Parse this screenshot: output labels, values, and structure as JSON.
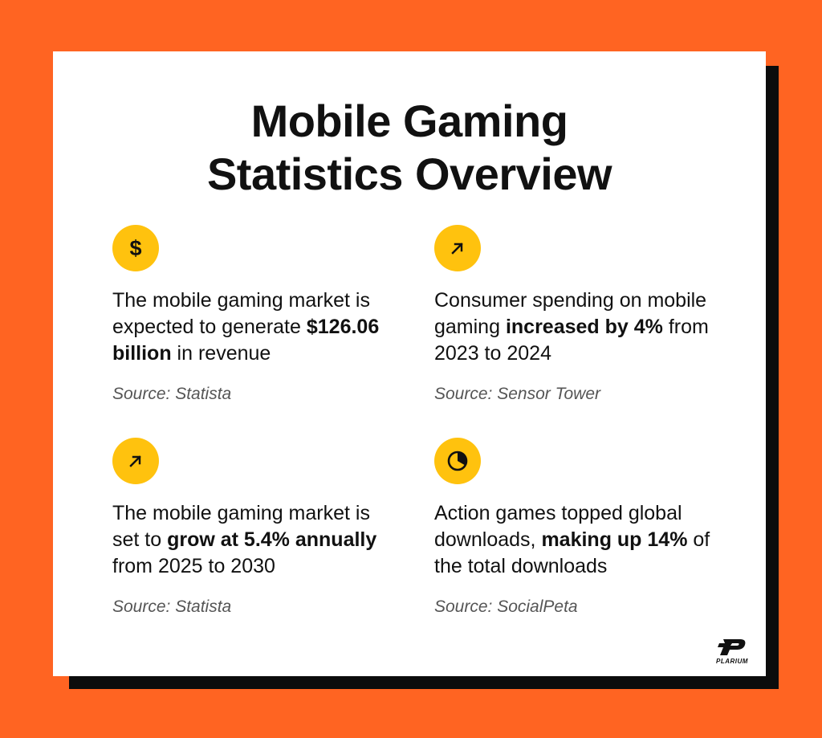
{
  "title": {
    "line1": "Mobile Gaming",
    "line2": "Statistics Overview"
  },
  "stats": [
    {
      "icon": "dollar-icon",
      "pre": "The mobile gaming market is expected to generate ",
      "bold": "$126.06 billion",
      "post": " in revenue",
      "source": "Source: Statista"
    },
    {
      "icon": "arrow-up-right-icon",
      "pre": "Consumer spending on mobile gaming ",
      "bold": "increased by 4%",
      "post": " from 2023 to 2024",
      "source": "Source: Sensor Tower"
    },
    {
      "icon": "arrow-up-right-icon",
      "pre": "The mobile gaming market is set to ",
      "bold": "grow at 5.4% annually",
      "post": " from 2025 to 2030",
      "source": "Source: Statista"
    },
    {
      "icon": "pie-chart-icon",
      "pre": "Action games topped global downloads, ",
      "bold": "making up 14%",
      "post": " of the total downloads",
      "source": "Source: SocialPeta"
    }
  ],
  "dollar_glyph": "$",
  "brand": {
    "name": "PLARIUM"
  },
  "colors": {
    "background": "#FF6422",
    "card": "#FFFFFF",
    "shadow": "#0C0C0C",
    "icon_circle": "#FFC20E",
    "text": "#111111",
    "source_text": "#555555"
  }
}
